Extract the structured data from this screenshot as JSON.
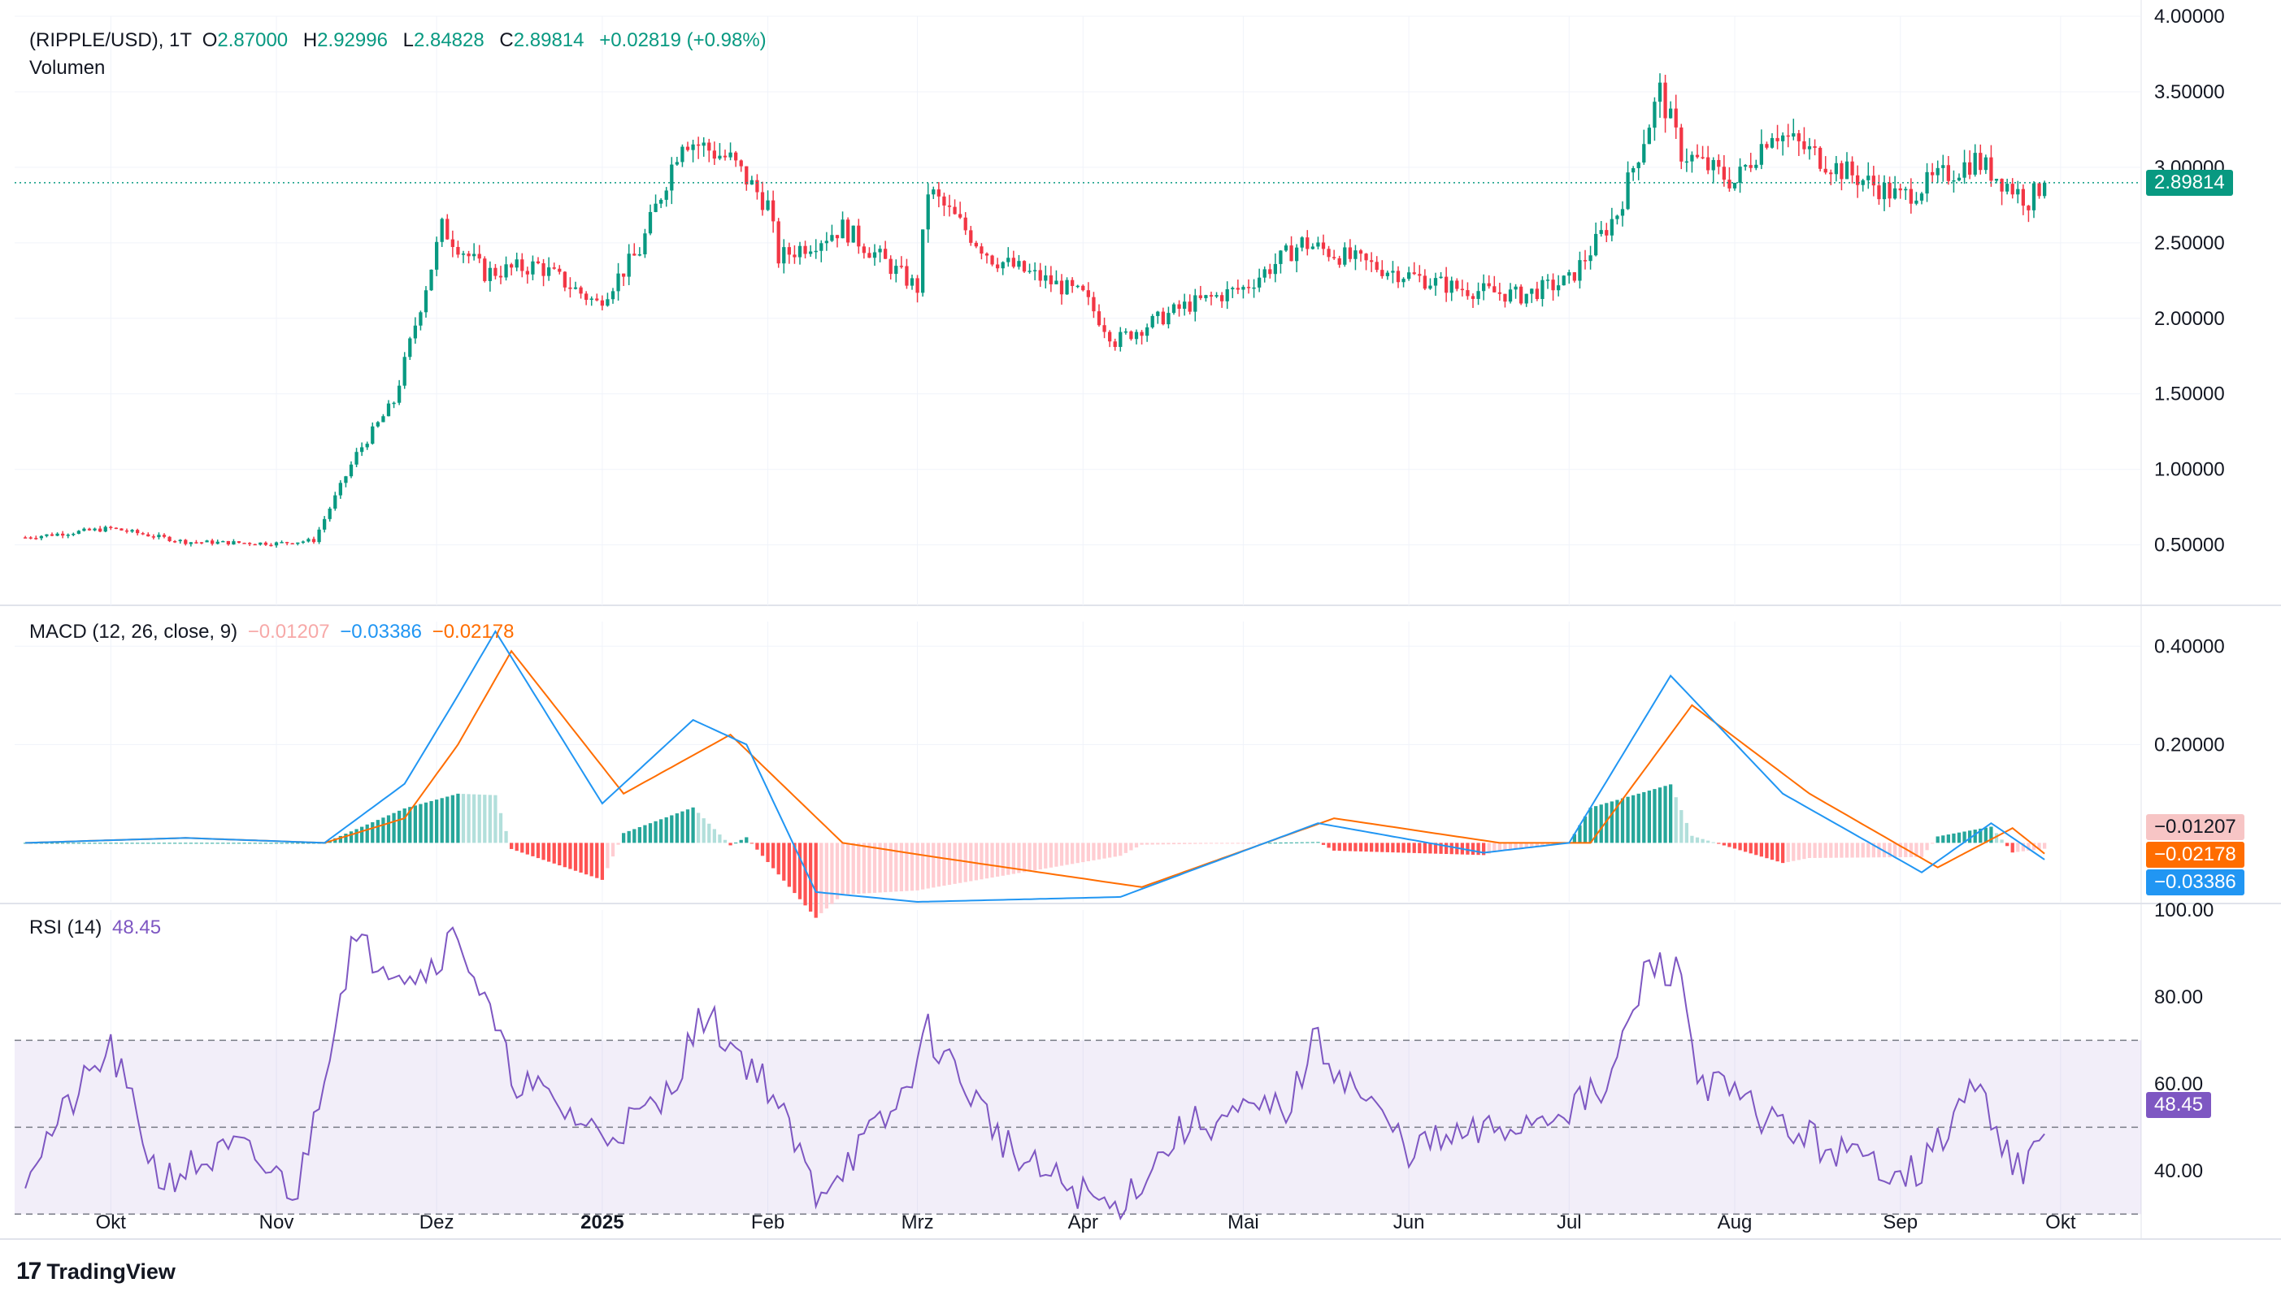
{
  "header": {
    "symbol": "(RIPPLE/USD), 1T",
    "o_label": "O",
    "o_value": "2.87000",
    "h_label": "H",
    "h_value": "2.92996",
    "l_label": "L",
    "l_value": "2.84828",
    "c_label": "C",
    "c_value": "2.89814",
    "change": "+0.02819 (+0.98%)",
    "volume_label": "Volumen"
  },
  "macd_legend": {
    "label": "MACD (12, 26, close, 9)",
    "hist": "−0.01207",
    "macd": "−0.03386",
    "signal": "−0.02178"
  },
  "rsi_legend": {
    "label": "RSI (14)",
    "value": "48.45"
  },
  "price_tag": "2.89814",
  "macd_tags": {
    "hist": "−0.01207",
    "signal": "−0.02178",
    "macd": "−0.03386"
  },
  "rsi_tag": "48.45",
  "brand": {
    "name": "TradingView"
  },
  "colors": {
    "up": "#089981",
    "down": "#f23645",
    "macd": "#2196f3",
    "signal": "#ff6d00",
    "rsi": "#7e57c2",
    "rsi_band": "#7e57c2"
  },
  "chart_data": [
    {
      "type": "candlestick",
      "title": "(RIPPLE/USD), 1T",
      "y_ticks": [
        "4.00000",
        "3.50000",
        "3.00000",
        "2.50000",
        "2.00000",
        "1.50000",
        "1.00000",
        "0.50000"
      ],
      "ylim": [
        0.1,
        4.0
      ],
      "x_ticks": [
        "Okt",
        "Nov",
        "Dez",
        "2025",
        "Feb",
        "Mrz",
        "Apr",
        "Mai",
        "Jun",
        "Jul",
        "Aug",
        "Sep",
        "Okt"
      ],
      "last_close": 2.89814,
      "series": [
        {
          "name": "close",
          "x": [
            "2024-09-15",
            "2024-10-01",
            "2024-10-15",
            "2024-11-01",
            "2024-11-08",
            "2024-11-16",
            "2024-11-23",
            "2024-12-02",
            "2024-12-10",
            "2024-12-20",
            "2024-12-31",
            "2025-01-08",
            "2025-01-16",
            "2025-01-25",
            "2025-02-01",
            "2025-02-03",
            "2025-02-15",
            "2025-03-01",
            "2025-03-03",
            "2025-03-15",
            "2025-04-01",
            "2025-04-07",
            "2025-04-20",
            "2025-05-01",
            "2025-05-12",
            "2025-05-25",
            "2025-06-10",
            "2025-06-22",
            "2025-07-01",
            "2025-07-10",
            "2025-07-18",
            "2025-07-22",
            "2025-08-01",
            "2025-08-08",
            "2025-08-20",
            "2025-09-01",
            "2025-09-15",
            "2025-09-25",
            "2025-09-28"
          ],
          "values": [
            0.55,
            0.61,
            0.52,
            0.51,
            0.53,
            1.1,
            1.45,
            2.6,
            2.3,
            2.35,
            2.1,
            2.45,
            3.2,
            3.05,
            2.75,
            2.4,
            2.6,
            2.2,
            2.85,
            2.4,
            2.15,
            1.85,
            2.08,
            2.2,
            2.5,
            2.35,
            2.2,
            2.15,
            2.25,
            2.7,
            3.5,
            3.1,
            2.9,
            3.25,
            3.0,
            2.8,
            3.05,
            2.78,
            2.9
          ]
        }
      ]
    },
    {
      "type": "line",
      "title": "MACD (12, 26, close, 9)",
      "y_ticks": [
        "0.40000",
        "0.20000"
      ],
      "ylim": [
        -0.12,
        0.45
      ],
      "series": [
        {
          "name": "MACD",
          "x": [
            "2024-09-15",
            "2024-10-15",
            "2024-11-10",
            "2024-11-25",
            "2024-12-05",
            "2024-12-12",
            "2025-01-01",
            "2025-01-18",
            "2025-01-28",
            "2025-02-10",
            "2025-03-01",
            "2025-04-08",
            "2025-05-15",
            "2025-06-15",
            "2025-07-01",
            "2025-07-20",
            "2025-08-10",
            "2025-09-05",
            "2025-09-18",
            "2025-09-28"
          ],
          "values": [
            0.0,
            0.01,
            0.0,
            0.12,
            0.3,
            0.43,
            0.08,
            0.25,
            0.2,
            -0.1,
            -0.12,
            -0.11,
            0.04,
            -0.02,
            0.0,
            0.34,
            0.1,
            -0.06,
            0.04,
            -0.034
          ]
        },
        {
          "name": "Signal",
          "x": [
            "2024-09-15",
            "2024-10-15",
            "2024-11-10",
            "2024-11-25",
            "2024-12-05",
            "2024-12-15",
            "2025-01-05",
            "2025-01-25",
            "2025-02-15",
            "2025-03-05",
            "2025-04-12",
            "2025-05-18",
            "2025-06-18",
            "2025-07-05",
            "2025-07-24",
            "2025-08-15",
            "2025-09-08",
            "2025-09-22",
            "2025-09-28"
          ],
          "values": [
            0.0,
            0.01,
            0.0,
            0.05,
            0.2,
            0.39,
            0.1,
            0.22,
            0.0,
            -0.03,
            -0.09,
            0.05,
            0.0,
            0.0,
            0.28,
            0.1,
            -0.05,
            0.03,
            -0.022
          ]
        }
      ]
    },
    {
      "type": "line",
      "title": "RSI (14)",
      "y_ticks": [
        "100.00",
        "80.00",
        "60.00",
        "40.00"
      ],
      "ylim": [
        28,
        100
      ],
      "band": [
        30,
        70
      ],
      "midline": 50,
      "series": [
        {
          "name": "RSI",
          "x": [
            "2024-09-15",
            "2024-09-25",
            "2024-10-01",
            "2024-10-10",
            "2024-10-25",
            "2024-11-05",
            "2024-11-15",
            "2024-11-28",
            "2024-12-05",
            "2024-12-15",
            "2025-01-01",
            "2025-01-12",
            "2025-01-20",
            "2025-02-01",
            "2025-02-10",
            "2025-02-25",
            "2025-03-03",
            "2025-03-20",
            "2025-04-07",
            "2025-04-20",
            "2025-05-10",
            "2025-05-14",
            "2025-06-01",
            "2025-06-20",
            "2025-07-08",
            "2025-07-16",
            "2025-07-22",
            "2025-07-25",
            "2025-08-10",
            "2025-08-25",
            "2025-09-05",
            "2025-09-15",
            "2025-09-24",
            "2025-09-28"
          ],
          "values": [
            40,
            58,
            68,
            38,
            45,
            35,
            92,
            85,
            95,
            62,
            48,
            55,
            76,
            60,
            35,
            54,
            72,
            42,
            31,
            50,
            55,
            70,
            45,
            50,
            58,
            88,
            85,
            62,
            50,
            42,
            40,
            60,
            38,
            48.45
          ]
        }
      ]
    }
  ]
}
